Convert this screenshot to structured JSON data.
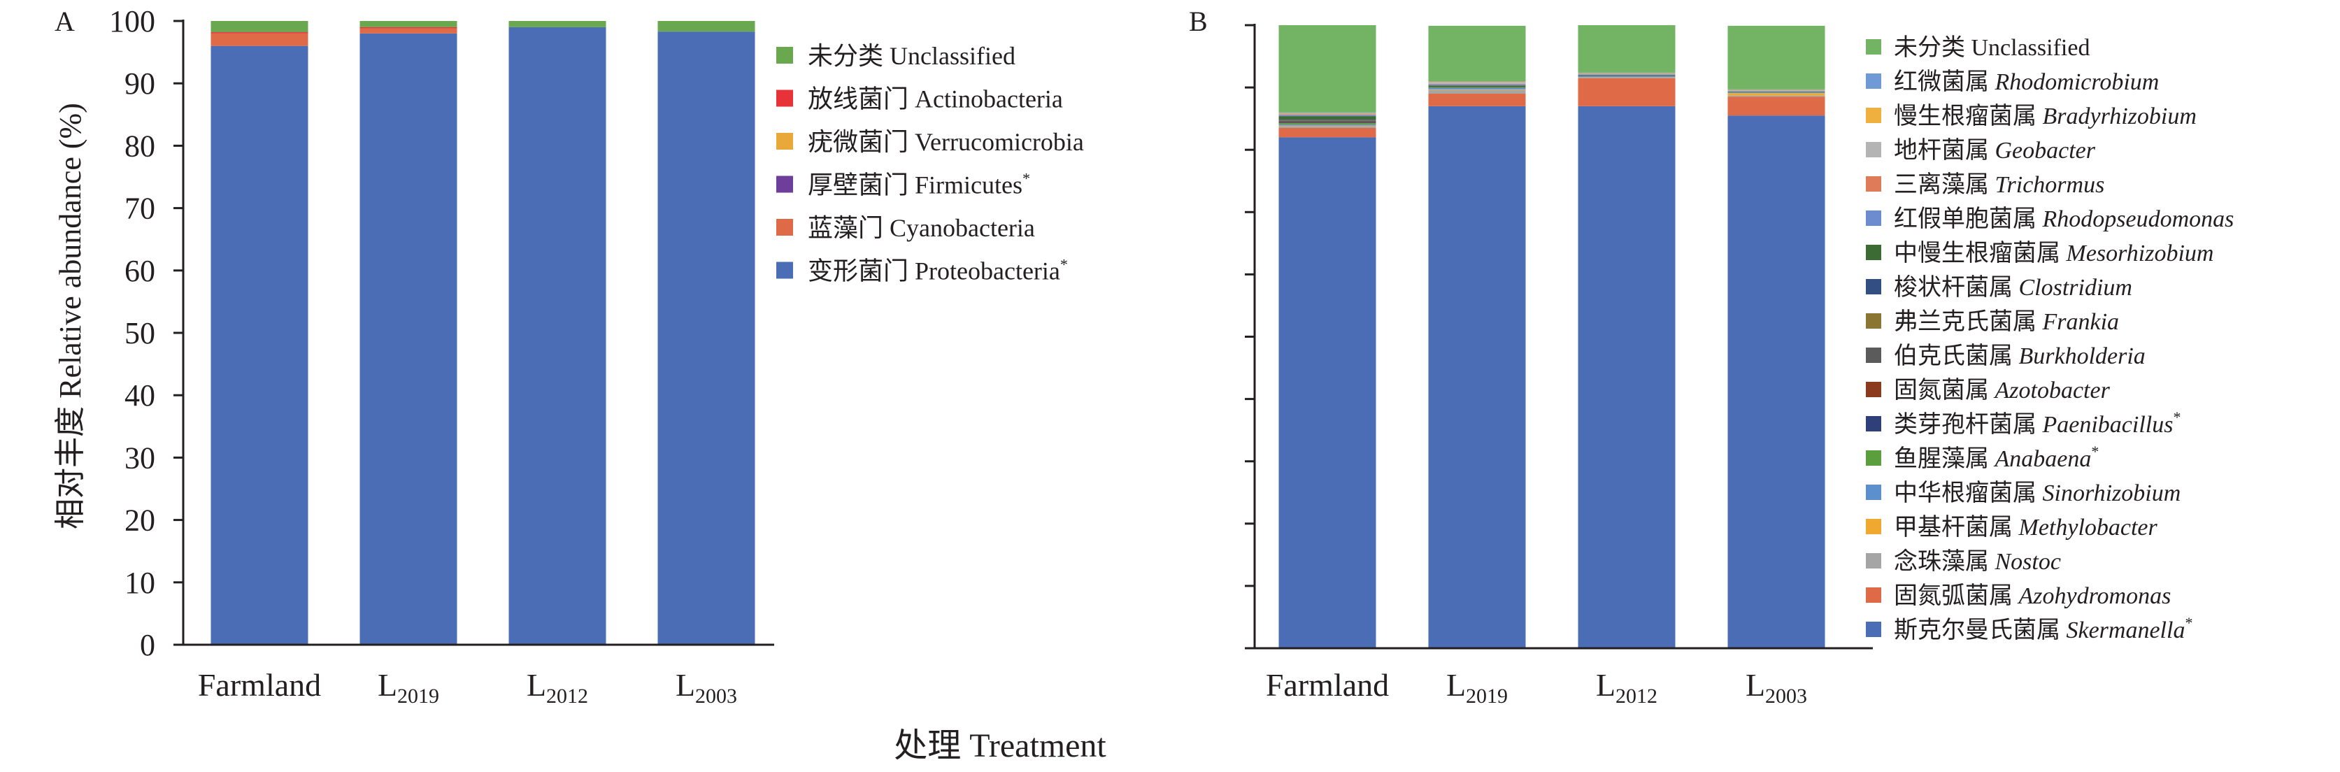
{
  "figure": {
    "xlabel": "处理 Treatment"
  },
  "chart_data": [
    {
      "panel_label": "A",
      "type": "bar",
      "stacked": true,
      "ylabel": "相对丰度 Relative abundance (%)",
      "ylim": [
        0,
        100
      ],
      "yticks": [
        "0",
        "10",
        "20",
        "30",
        "40",
        "50",
        "60",
        "70",
        "80",
        "90",
        "100"
      ],
      "categories": [
        {
          "main": "Farmland",
          "sub": ""
        },
        {
          "main": "L",
          "sub": "2019"
        },
        {
          "main": "L",
          "sub": "2012"
        },
        {
          "main": "L",
          "sub": "2003"
        }
      ],
      "legend_position": "right",
      "series": [
        {
          "name": "变形菌门 Proteobacteria",
          "star": true,
          "color": "#4a6db5",
          "values": [
            96.0,
            98.0,
            99.0,
            98.3
          ]
        },
        {
          "name": "蓝藻门 Cyanobacteria",
          "star": false,
          "color": "#de6a47",
          "values": [
            2.0,
            0.8,
            0.0,
            0.0
          ]
        },
        {
          "name": "厚壁菌门 Firmicutes",
          "star": true,
          "color": "#6d3f9a",
          "values": [
            0.0,
            0.0,
            0.0,
            0.0
          ]
        },
        {
          "name": "疣微菌门 Verrucomicrobia",
          "star": false,
          "color": "#e8a83a",
          "values": [
            0.0,
            0.0,
            0.0,
            0.0
          ]
        },
        {
          "name": "放线菌门 Actinobacteria",
          "star": false,
          "color": "#e8323a",
          "values": [
            0.2,
            0.2,
            0.0,
            0.0
          ]
        },
        {
          "name": "未分类 Unclassified",
          "star": false,
          "color": "#6aa84f",
          "values": [
            1.8,
            1.0,
            1.0,
            1.7
          ]
        }
      ]
    },
    {
      "panel_label": "B",
      "type": "bar",
      "stacked": true,
      "ylim": [
        0,
        100
      ],
      "categories": [
        {
          "main": "Farmland",
          "sub": ""
        },
        {
          "main": "L",
          "sub": "2019"
        },
        {
          "main": "L",
          "sub": "2012"
        },
        {
          "main": "L",
          "sub": "2003"
        }
      ],
      "legend_position": "right",
      "series": [
        {
          "name_cn": "斯克尔曼氏菌属",
          "name_lat": "Skermanella",
          "star": true,
          "color": "#4a6db5",
          "values": [
            82.0,
            87.0,
            87.0,
            85.5
          ]
        },
        {
          "name_cn": "固氮弧菌属",
          "name_lat": "Azohydromonas",
          "star": false,
          "color": "#de6a47",
          "values": [
            1.5,
            2.0,
            4.5,
            3.0
          ]
        },
        {
          "name_cn": "念珠藻属",
          "name_lat": "Nostoc",
          "star": false,
          "color": "#a5a5a5",
          "values": [
            0.3,
            0.6,
            0.2,
            0.2
          ]
        },
        {
          "name_cn": "甲基杆菌属",
          "name_lat": "Methylobacter",
          "star": false,
          "color": "#f0a830",
          "values": [
            0.1,
            0.1,
            0.0,
            0.4
          ]
        },
        {
          "name_cn": "中华根瘤菌属",
          "name_lat": "Sinorhizobium",
          "star": false,
          "color": "#5b8fce",
          "values": [
            0.2,
            0.2,
            0.1,
            0.1
          ]
        },
        {
          "name_cn": "鱼腥藻属",
          "name_lat": "Anabaena",
          "star": true,
          "color": "#5a9e3e",
          "values": [
            0.2,
            0.1,
            0.0,
            0.0
          ]
        },
        {
          "name_cn": "类芽孢杆菌属",
          "name_lat": "Paenibacillus",
          "star": true,
          "color": "#2e3f7a",
          "values": [
            0.1,
            0.0,
            0.0,
            0.0
          ]
        },
        {
          "name_cn": "固氮菌属",
          "name_lat": "Azotobacter",
          "star": false,
          "color": "#8b3a1e",
          "values": [
            0.1,
            0.0,
            0.0,
            0.0
          ]
        },
        {
          "name_cn": "伯克氏菌属",
          "name_lat": "Burkholderia",
          "star": false,
          "color": "#5b5b5b",
          "values": [
            0.2,
            0.1,
            0.1,
            0.0
          ]
        },
        {
          "name_cn": "弗兰克氏菌属",
          "name_lat": "Frankia",
          "star": false,
          "color": "#8a7532",
          "values": [
            0.1,
            0.0,
            0.0,
            0.0
          ]
        },
        {
          "name_cn": "梭状杆菌属",
          "name_lat": "Clostridium",
          "star": false,
          "color": "#324e82",
          "values": [
            0.1,
            0.0,
            0.0,
            0.0
          ]
        },
        {
          "name_cn": "中慢生根瘤菌属",
          "name_lat": "Mesorhizobium",
          "star": false,
          "color": "#3d6b34",
          "values": [
            0.5,
            0.2,
            0.1,
            0.1
          ]
        },
        {
          "name_cn": "红假单胞菌属",
          "name_lat": "Rhodopseudomonas",
          "star": false,
          "color": "#6d8cd0",
          "values": [
            0.2,
            0.2,
            0.1,
            0.1
          ]
        },
        {
          "name_cn": "三离藻属",
          "name_lat": "Trichormus",
          "star": false,
          "color": "#e07b5a",
          "values": [
            0.1,
            0.1,
            0.0,
            0.0
          ]
        },
        {
          "name_cn": "地杆菌属",
          "name_lat": "Geobacter",
          "star": false,
          "color": "#b4b4b4",
          "values": [
            0.1,
            0.2,
            0.1,
            0.1
          ]
        },
        {
          "name_cn": "慢生根瘤菌属",
          "name_lat": "Bradyrhizobium",
          "star": false,
          "color": "#f0b040",
          "values": [
            0.1,
            0.1,
            0.1,
            0.1
          ]
        },
        {
          "name_cn": "红微菌属",
          "name_lat": "Rhodomicrobium",
          "star": false,
          "color": "#6f9ad6",
          "values": [
            0.1,
            0.1,
            0.1,
            0.1
          ]
        },
        {
          "name_cn": "未分类",
          "name_lat": "Unclassified",
          "latin_italic": false,
          "star": false,
          "color": "#72b463",
          "values": [
            14.0,
            8.9,
            7.6,
            10.2
          ]
        }
      ]
    }
  ]
}
